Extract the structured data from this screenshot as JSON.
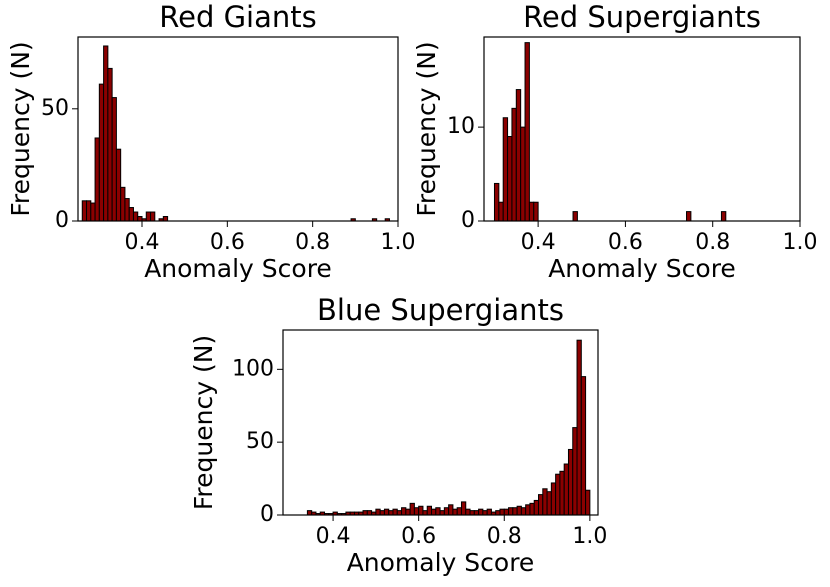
{
  "chart_data": [
    {
      "type": "histogram",
      "title": "Red Giants",
      "xlabel": "Anomaly Score",
      "ylabel": "Frequency (N)",
      "color": "#8b0000",
      "edgecolor": "#000000",
      "bins": [
        0.26,
        0.27,
        0.28,
        0.29,
        0.3,
        0.31,
        0.32,
        0.33,
        0.34,
        0.35,
        0.36,
        0.37,
        0.38,
        0.39,
        0.4,
        0.41,
        0.42,
        0.43,
        0.44,
        0.45,
        0.46,
        0.47,
        0.48,
        0.49,
        0.5,
        0.51,
        0.52,
        0.53,
        0.54,
        0.55,
        0.56,
        0.57,
        0.58,
        0.59,
        0.6,
        0.61,
        0.62,
        0.63,
        0.64,
        0.65,
        0.66,
        0.67,
        0.68,
        0.69,
        0.7,
        0.71,
        0.72,
        0.73,
        0.74,
        0.75,
        0.76,
        0.77,
        0.78,
        0.79,
        0.8,
        0.81,
        0.82,
        0.83,
        0.84,
        0.85,
        0.86,
        0.87,
        0.88,
        0.89,
        0.9,
        0.91,
        0.92,
        0.93,
        0.94,
        0.95,
        0.96,
        0.97,
        0.98
      ],
      "values": [
        9,
        9,
        8,
        37,
        61,
        78,
        68,
        55,
        32,
        15,
        10,
        6,
        4,
        2,
        1,
        4,
        4,
        0,
        1,
        2,
        0,
        0,
        0,
        0,
        0,
        0,
        0,
        0,
        0,
        0,
        0,
        0,
        0,
        0,
        0,
        0,
        0,
        0,
        0,
        0,
        0,
        0,
        0,
        0,
        0,
        0,
        0,
        0,
        0,
        0,
        0,
        0,
        0,
        0,
        0,
        0,
        0,
        0,
        0,
        0,
        0,
        0,
        0,
        1,
        0,
        0,
        0,
        0,
        1,
        0,
        0,
        1
      ],
      "xlim": [
        0.25,
        1.0
      ],
      "ylim": [
        0,
        82
      ],
      "xticks": [
        0.4,
        0.6,
        0.8,
        {
          "value": 1,
          "label": "1.0"
        }
      ],
      "yticks": [
        0,
        50
      ]
    },
    {
      "type": "histogram",
      "title": "Red Supergiants",
      "xlabel": "Anomaly Score",
      "ylabel": "Frequency (N)",
      "color": "#8b0000",
      "edgecolor": "#000000",
      "bins": [
        0.3,
        0.31,
        0.32,
        0.33,
        0.34,
        0.35,
        0.36,
        0.37,
        0.38,
        0.39,
        0.4,
        0.41,
        0.42,
        0.43,
        0.44,
        0.45,
        0.46,
        0.47,
        0.48,
        0.49,
        0.5,
        0.51,
        0.52,
        0.53,
        0.54,
        0.55,
        0.56,
        0.57,
        0.58,
        0.59,
        0.6,
        0.61,
        0.62,
        0.63,
        0.64,
        0.65,
        0.66,
        0.67,
        0.68,
        0.69,
        0.7,
        0.71,
        0.72,
        0.73,
        0.74,
        0.75,
        0.76,
        0.77,
        0.78,
        0.79,
        0.8,
        0.81,
        0.82,
        0.83
      ],
      "values": [
        4,
        2,
        11,
        9,
        12,
        14,
        10,
        19,
        2,
        2,
        0,
        0,
        0,
        0,
        0,
        0,
        0,
        0,
        1,
        0,
        0,
        0,
        0,
        0,
        0,
        0,
        0,
        0,
        0,
        0,
        0,
        0,
        0,
        0,
        0,
        0,
        0,
        0,
        0,
        0,
        0,
        0,
        0,
        0,
        1,
        0,
        0,
        0,
        0,
        0,
        0,
        0,
        1
      ],
      "xlim": [
        0.276,
        1.0
      ],
      "ylim": [
        0,
        19.6
      ],
      "xticks": [
        0.4,
        0.6,
        0.8,
        {
          "value": 1,
          "label": "1.0"
        }
      ],
      "yticks": [
        0,
        10
      ]
    },
    {
      "type": "histogram",
      "title": "Blue Supergiants",
      "xlabel": "Anomaly Score",
      "ylabel": "Frequency (N)",
      "color": "#8b0000",
      "edgecolor": "#000000",
      "bins": [
        0.34,
        0.35,
        0.36,
        0.37,
        0.38,
        0.39,
        0.4,
        0.41,
        0.42,
        0.43,
        0.44,
        0.45,
        0.46,
        0.47,
        0.48,
        0.49,
        0.5,
        0.51,
        0.52,
        0.53,
        0.54,
        0.55,
        0.56,
        0.57,
        0.58,
        0.59,
        0.6,
        0.61,
        0.62,
        0.63,
        0.64,
        0.65,
        0.66,
        0.67,
        0.68,
        0.69,
        0.7,
        0.71,
        0.72,
        0.73,
        0.74,
        0.75,
        0.76,
        0.77,
        0.78,
        0.79,
        0.8,
        0.81,
        0.82,
        0.83,
        0.84,
        0.85,
        0.86,
        0.87,
        0.88,
        0.89,
        0.9,
        0.91,
        0.92,
        0.93,
        0.94,
        0.95,
        0.96,
        0.97,
        0.98,
        0.99,
        1.0
      ],
      "values": [
        3,
        2,
        1,
        2,
        1,
        1,
        2,
        1,
        1,
        2,
        2,
        2,
        2,
        3,
        3,
        2,
        4,
        3,
        4,
        3,
        4,
        3,
        5,
        4,
        8,
        5,
        6,
        3,
        6,
        4,
        5,
        3,
        5,
        7,
        4,
        5,
        9,
        4,
        3,
        3,
        4,
        3,
        4,
        2,
        3,
        4,
        4,
        5,
        5,
        6,
        5,
        7,
        8,
        10,
        14,
        18,
        16,
        22,
        28,
        30,
        35,
        45,
        60,
        120,
        95,
        17
      ],
      "xlim": [
        0.283,
        1.019
      ],
      "ylim": [
        0,
        127
      ],
      "xticks": [
        0.4,
        0.6,
        0.8,
        {
          "value": 1,
          "label": "1.0"
        }
      ],
      "yticks": [
        0,
        50,
        100
      ]
    }
  ]
}
